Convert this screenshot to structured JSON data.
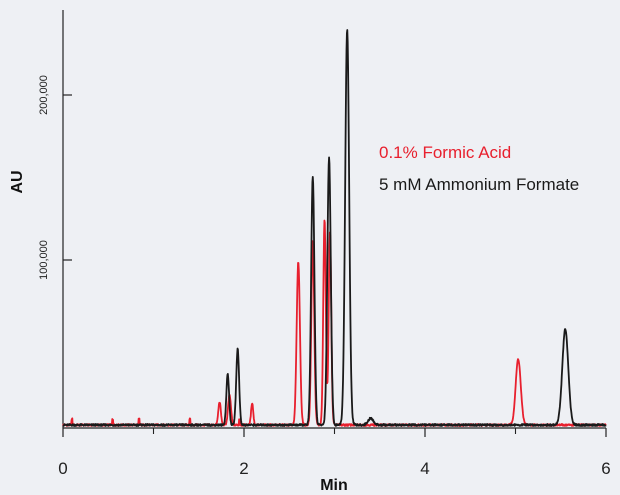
{
  "chart_data": {
    "type": "line",
    "xlabel": "Min",
    "ylabel": "AU",
    "xlim": [
      0,
      6
    ],
    "ylim": [
      -10000,
      245000
    ],
    "xticks": [
      0,
      2,
      4,
      6
    ],
    "xminor": [
      1,
      3,
      5
    ],
    "yticks": [
      100000,
      200000
    ],
    "ytick_labels": [
      "100,000",
      "200,000"
    ],
    "grid": false,
    "legend_placement": "upper-right",
    "series": [
      {
        "name": "0.1% Formic Acid",
        "color": "#e8202e",
        "baseline": 0,
        "peaks": [
          {
            "x": 1.73,
            "y": 14000,
            "w": 0.014
          },
          {
            "x": 1.84,
            "y": 18000,
            "w": 0.016
          },
          {
            "x": 2.09,
            "y": 13500,
            "w": 0.012
          },
          {
            "x": 2.6,
            "y": 99000,
            "w": 0.018
          },
          {
            "x": 2.76,
            "y": 111000,
            "w": 0.016
          },
          {
            "x": 2.89,
            "y": 125000,
            "w": 0.014
          },
          {
            "x": 2.95,
            "y": 117000,
            "w": 0.014
          },
          {
            "x": 5.03,
            "y": 40000,
            "w": 0.028
          }
        ],
        "spikes": [
          0.1,
          0.55,
          0.84,
          1.4,
          1.95
        ]
      },
      {
        "name": "5 mM Ammonium Formate",
        "color": "#1a1a1a",
        "baseline": 0,
        "peaks": [
          {
            "x": 1.82,
            "y": 31000,
            "w": 0.015
          },
          {
            "x": 1.93,
            "y": 46000,
            "w": 0.016
          },
          {
            "x": 2.76,
            "y": 151000,
            "w": 0.018
          },
          {
            "x": 2.94,
            "y": 162000,
            "w": 0.019
          },
          {
            "x": 3.14,
            "y": 240000,
            "w": 0.022
          },
          {
            "x": 3.4,
            "y": 4000,
            "w": 0.03
          },
          {
            "x": 5.55,
            "y": 58000,
            "w": 0.033
          }
        ],
        "spikes": []
      }
    ]
  }
}
